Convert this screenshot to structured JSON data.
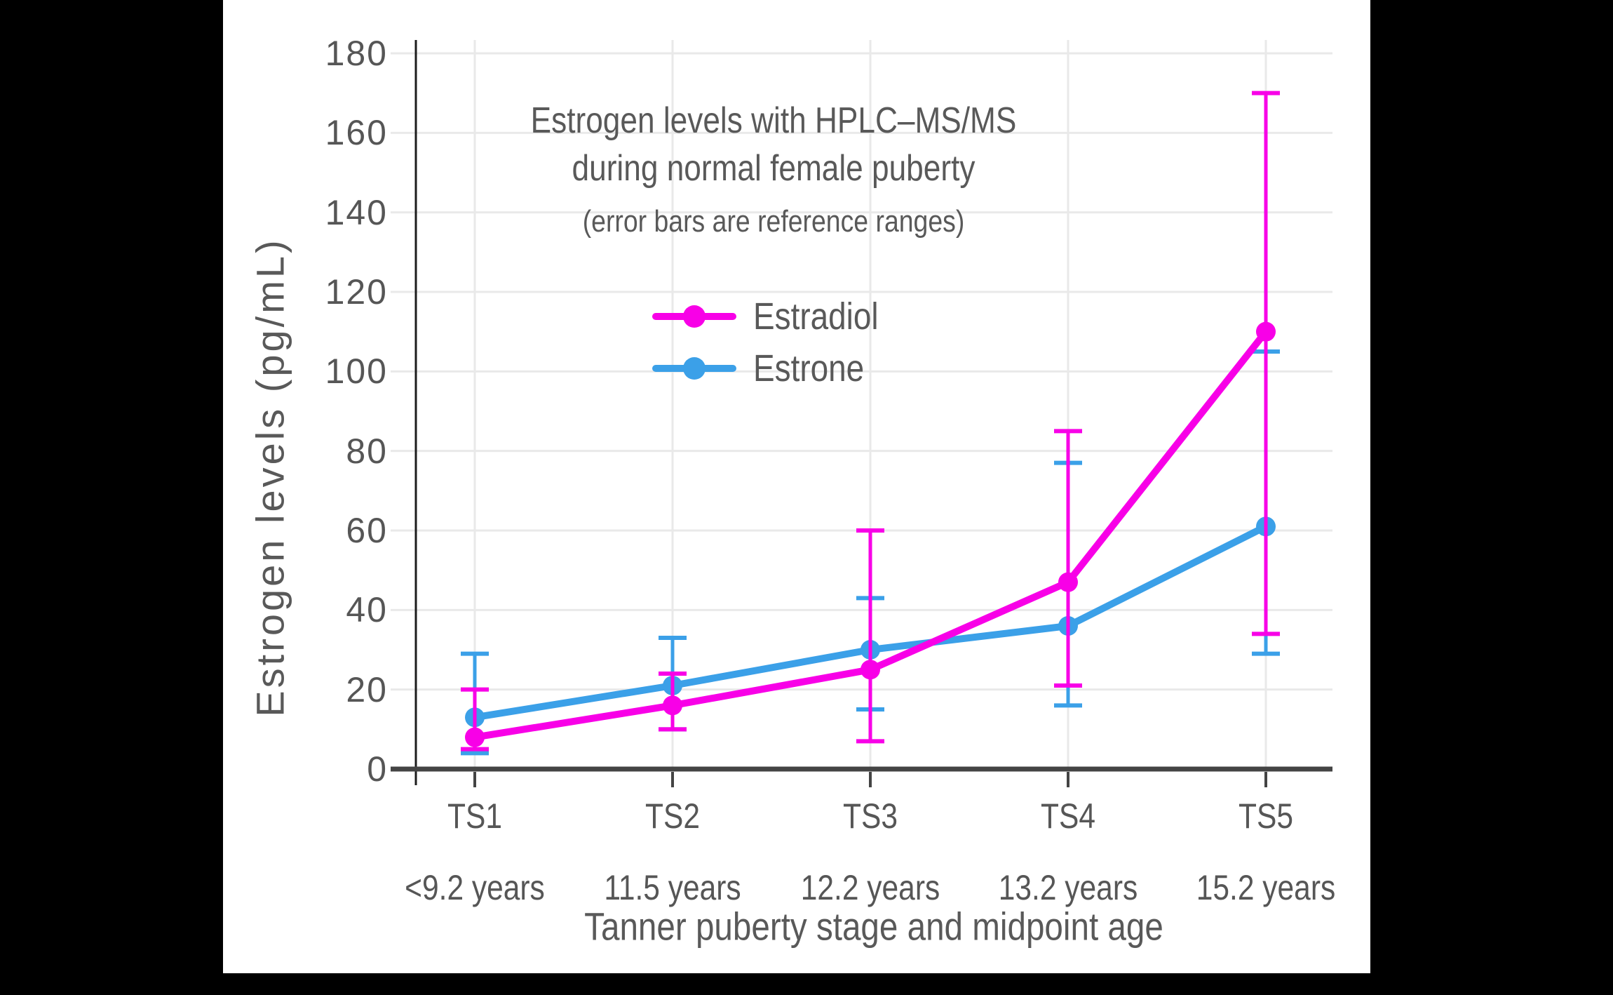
{
  "figure": {
    "title_line1": "Estrogen levels with HPLC–MS/MS",
    "title_line2": "during normal female puberty",
    "subtitle": "(error bars are reference ranges)"
  },
  "chart_data": {
    "type": "line",
    "title": "Estrogen levels with HPLC–MS/MS during normal female puberty",
    "subtitle": "(error bars are reference ranges)",
    "xlabel": "Tanner puberty stage and midpoint age",
    "ylabel": "Estrogen levels (pg/mL)",
    "unit": "pg/mL",
    "ylim": [
      0,
      185
    ],
    "yticks": [
      0,
      20,
      40,
      60,
      80,
      100,
      120,
      140,
      160,
      180
    ],
    "grid": true,
    "legend_position": "upper-left-inside",
    "categories": [
      "TS1",
      "TS2",
      "TS3",
      "TS4",
      "TS5"
    ],
    "category_ages": [
      "<9.2 years",
      "11.5 years",
      "12.2 years",
      "13.2 years",
      "15.2 years"
    ],
    "series": [
      {
        "name": "Estrone",
        "color": "#3ba0e8",
        "values": [
          13,
          21,
          30,
          36,
          61
        ],
        "range_low": [
          4,
          10,
          15,
          16,
          29
        ],
        "range_high": [
          29,
          33,
          43,
          77,
          105
        ]
      },
      {
        "name": "Estradiol",
        "color": "#f800e7",
        "values": [
          8,
          16,
          25,
          47,
          110
        ],
        "range_low": [
          5,
          10,
          7,
          21,
          34
        ],
        "range_high": [
          20,
          24,
          60,
          85,
          170
        ]
      }
    ]
  },
  "legend": {
    "items": [
      {
        "label": "Estradiol",
        "color": "#f800e7"
      },
      {
        "label": "Estrone",
        "color": "#3ba0e8"
      }
    ]
  },
  "colors": {
    "background": "#000000",
    "chart_background": "#ffffff",
    "grid": "#e9e9e9",
    "x_axis": "#444444",
    "y_spine": "#1c1c1c",
    "text": "#595959",
    "estradiol": "#f800e7",
    "estrone": "#3ba0e8"
  }
}
